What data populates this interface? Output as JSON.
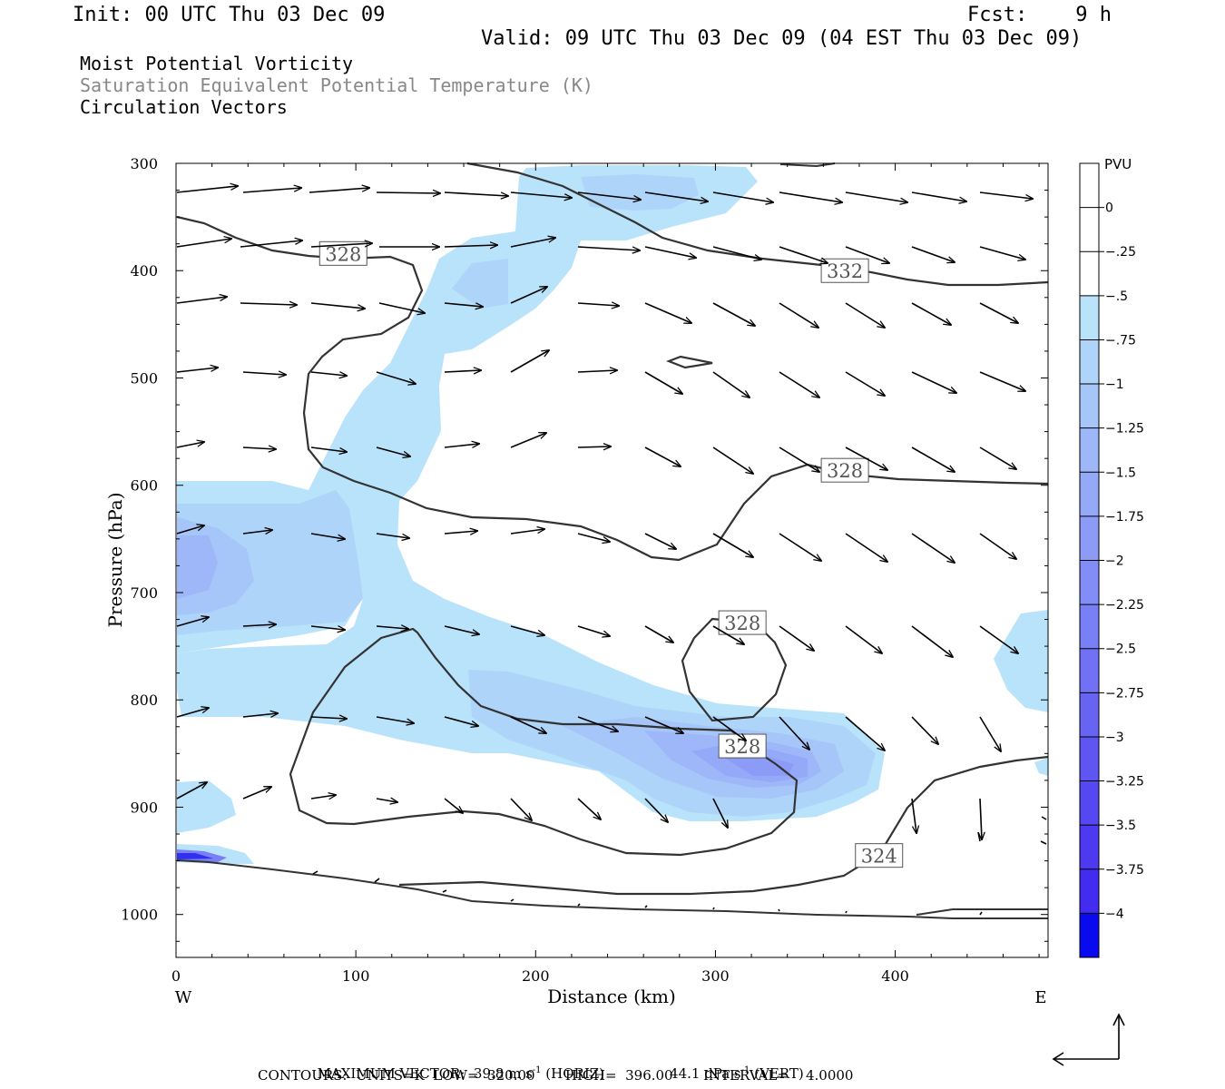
{
  "header": {
    "init": "Init: 00 UTC Thu 03 Dec 09",
    "fcst": "Fcst:    9 h",
    "valid": "Valid: 09 UTC Thu 03 Dec 09 (04 EST Thu 03 Dec 09)",
    "fields": [
      "Moist Potential Vorticity",
      "Saturation Equivalent Potential Temperature (K)",
      "Circulation Vectors"
    ]
  },
  "footer": {
    "line1_a": "MAXIMUM VECTOR:  39.8 m s",
    "line1_sup1": "-1",
    "line1_b": " (HORIZ)",
    "line1_c": "44.1 dPa s",
    "line1_sup2": "-1",
    "line1_d": " (VERT)",
    "line2": "CONTOURS:  UNITS=K  LOW=  320.00       HIGH=  396.00       INTERVAL=    4.0000"
  },
  "chart_data": {
    "type": "cross-section",
    "xlabel": "Distance (km)",
    "ylabel": "Pressure (hPa)",
    "xlim": [
      0,
      485
    ],
    "ylim": [
      300,
      1040
    ],
    "x_ticks": [
      0,
      100,
      200,
      300,
      400
    ],
    "y_ticks": [
      300,
      400,
      500,
      600,
      700,
      800,
      900,
      1000
    ],
    "x_end_labels": {
      "left": "W",
      "right": "E"
    },
    "colorbar": {
      "title": "PVU",
      "levels": [
        "0",
        "-.25",
        "-.5",
        "-.75",
        "-1",
        "-1.25",
        "-1.5",
        "-1.75",
        "-2",
        "-2.25",
        "-2.5",
        "-2.75",
        "-3",
        "-3.25",
        "-3.5",
        "-3.75",
        "-4"
      ],
      "colors": [
        "#ffffff",
        "#ffffff",
        "#b8e3fa",
        "#afd4fa",
        "#a6c5f9",
        "#9db7f8",
        "#94a9f7",
        "#8b9bf6",
        "#828df5",
        "#797ff4",
        "#7071f4",
        "#6763f3",
        "#5e55f2",
        "#5547f1",
        "#4c39f0",
        "#432bef",
        "#0a0af0"
      ]
    },
    "contour_labels": [
      {
        "text": "328",
        "x": 93,
        "p": 384
      },
      {
        "text": "332",
        "x": 372,
        "p": 400
      },
      {
        "text": "328",
        "x": 372,
        "p": 586
      },
      {
        "text": "328",
        "x": 315,
        "p": 728
      },
      {
        "text": "328",
        "x": 315,
        "p": 843
      },
      {
        "text": "324",
        "x": 391,
        "p": 945
      }
    ],
    "contour_units": "K",
    "contour_low": 320.0,
    "contour_high": 396.0,
    "contour_interval": 4.0,
    "max_vector_horiz_m_s": 39.8,
    "max_vector_vert_dPa_s": 44.1
  }
}
